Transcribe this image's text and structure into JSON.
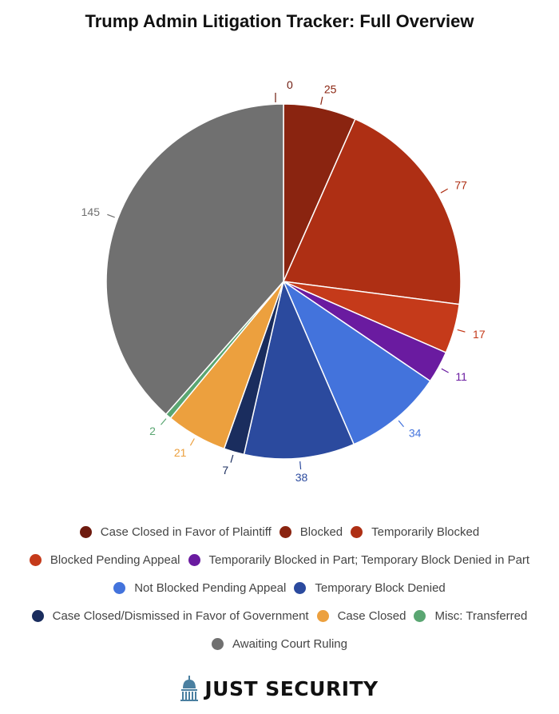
{
  "chart_data": {
    "type": "pie",
    "title": "Trump Admin Litigation Tracker: Full Overview",
    "legend_position": "bottom",
    "slices": [
      {
        "label": "Case Closed in Favor of Plaintiff",
        "value": 0,
        "color": "#6e1a0e"
      },
      {
        "label": "Blocked",
        "value": 25,
        "color": "#8a2410"
      },
      {
        "label": "Temporarily Blocked",
        "value": 77,
        "color": "#ae2f14"
      },
      {
        "label": "Blocked Pending Appeal",
        "value": 17,
        "color": "#c53a1a"
      },
      {
        "label": "Temporarily Blocked in Part; Temporary Block Denied in Part",
        "value": 11,
        "color": "#6a1ba0"
      },
      {
        "label": "Not Blocked Pending Appeal",
        "value": 34,
        "color": "#4373dc"
      },
      {
        "label": "Temporary Block Denied",
        "value": 38,
        "color": "#2b4a9e"
      },
      {
        "label": "Case Closed/Dismissed in Favor of Government",
        "value": 7,
        "color": "#1a2d5e"
      },
      {
        "label": "Case Closed",
        "value": 21,
        "color": "#eca03e"
      },
      {
        "label": "Misc: Transferred",
        "value": 2,
        "color": "#5aa672"
      },
      {
        "label": "Awaiting Court Ruling",
        "value": 145,
        "color": "#707070"
      }
    ]
  },
  "brand": {
    "name": "JUST SECURITY",
    "icon": "capitol-dome-icon",
    "icon_color": "#4a7fa0"
  }
}
